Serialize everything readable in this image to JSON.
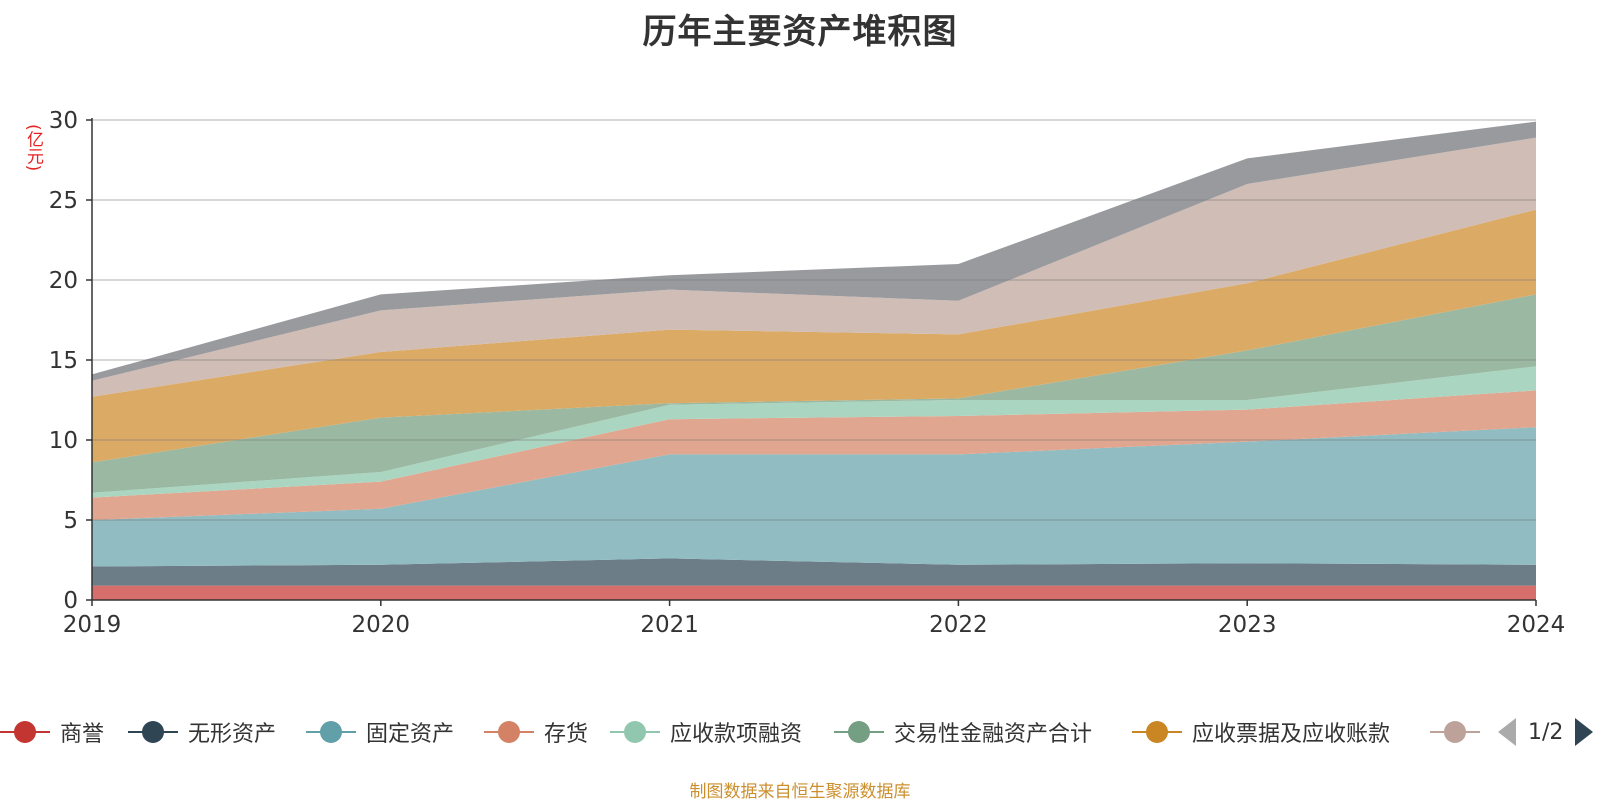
{
  "chart_data": {
    "type": "area",
    "stacked": true,
    "title": "历年主要资产堆积图",
    "ylabel": "(亿元)",
    "xlabel": "",
    "ylim": [
      0,
      30
    ],
    "yticks": [
      0,
      5,
      10,
      15,
      20,
      25,
      30
    ],
    "categories": [
      "2019",
      "2020",
      "2021",
      "2022",
      "2023",
      "2024"
    ],
    "grid": true,
    "legend_position": "bottom",
    "series": [
      {
        "name": "商誉",
        "color": "#c23531",
        "fill": "#d66f6c",
        "values": [
          0.9,
          0.9,
          0.9,
          0.9,
          0.9,
          0.9
        ]
      },
      {
        "name": "无形资产",
        "color": "#2f4554",
        "fill": "#6d7d88",
        "values": [
          1.2,
          1.3,
          1.7,
          1.3,
          1.4,
          1.3
        ]
      },
      {
        "name": "固定资产",
        "color": "#61a0a8",
        "fill": "#90bcc2",
        "values": [
          2.9,
          3.5,
          6.5,
          6.9,
          7.6,
          8.6
        ]
      },
      {
        "name": "存货",
        "color": "#d48265",
        "fill": "#e1a68f",
        "values": [
          1.4,
          1.7,
          2.2,
          2.4,
          2.0,
          2.3
        ]
      },
      {
        "name": "应收款项融资",
        "color": "#91c7ae",
        "fill": "#aad6c1",
        "values": [
          0.3,
          0.6,
          0.9,
          1.0,
          0.6,
          1.5
        ]
      },
      {
        "name": "交易性金融资产合计",
        "color": "#749f83",
        "fill": "#9bb9a2",
        "values": [
          1.9,
          3.4,
          0.1,
          0.1,
          3.1,
          4.5
        ]
      },
      {
        "name": "应收票据及应收账款",
        "color": "#ca8622",
        "fill": "#dbaa64",
        "values": [
          4.1,
          4.1,
          4.6,
          4.0,
          4.2,
          5.3
        ]
      },
      {
        "name": "",
        "color": "#bda29a",
        "fill": "#d0bdb6",
        "values": [
          1.0,
          2.6,
          2.5,
          2.1,
          6.2,
          4.5
        ]
      },
      {
        "name": "",
        "color": "#6e7074",
        "fill": "#999a9e",
        "values": [
          0.4,
          1.0,
          0.9,
          2.3,
          1.6,
          1.0
        ]
      }
    ],
    "legend_page": "1/2"
  },
  "footer": "制图数据来自恒生聚源数据库"
}
